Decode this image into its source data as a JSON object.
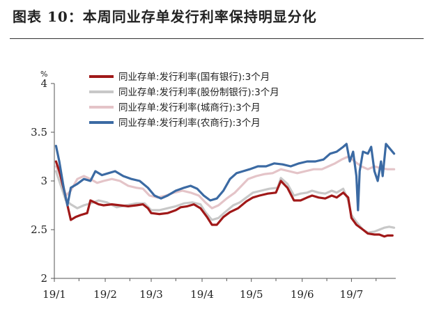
{
  "title": "图表 10：本周同业存单发行利率保持明显分化",
  "chart_data": {
    "type": "line",
    "y_unit": "%",
    "ylim": [
      2,
      4
    ],
    "yticks": [
      "2",
      "2.5",
      "3",
      "3.5",
      "4"
    ],
    "xticks": [
      "19/1",
      "19/2",
      "19/3",
      "19/4",
      "19/5",
      "19/6",
      "19/7"
    ],
    "x_range": [
      "2019-01-01",
      "2019-07-28"
    ],
    "legend_position": "top-right",
    "series": [
      {
        "name": "同业存单:发行利率(国有银行):3个月",
        "color": "#a01818",
        "points": [
          [
            "2019-01-02",
            3.2
          ],
          [
            "2019-01-04",
            3.1
          ],
          [
            "2019-01-07",
            2.9
          ],
          [
            "2019-01-09",
            2.75
          ],
          [
            "2019-01-11",
            2.6
          ],
          [
            "2019-01-14",
            2.63
          ],
          [
            "2019-01-17",
            2.65
          ],
          [
            "2019-01-21",
            2.67
          ],
          [
            "2019-01-23",
            2.8
          ],
          [
            "2019-01-28",
            2.76
          ],
          [
            "2019-01-31",
            2.75
          ],
          [
            "2019-02-05",
            2.76
          ],
          [
            "2019-02-10",
            2.75
          ],
          [
            "2019-02-15",
            2.74
          ],
          [
            "2019-02-20",
            2.75
          ],
          [
            "2019-02-24",
            2.76
          ],
          [
            "2019-02-27",
            2.72
          ],
          [
            "2019-03-01",
            2.67
          ],
          [
            "2019-03-06",
            2.66
          ],
          [
            "2019-03-11",
            2.67
          ],
          [
            "2019-03-16",
            2.7
          ],
          [
            "2019-03-19",
            2.73
          ],
          [
            "2019-03-23",
            2.74
          ],
          [
            "2019-03-27",
            2.76
          ],
          [
            "2019-03-31",
            2.72
          ],
          [
            "2019-04-04",
            2.63
          ],
          [
            "2019-04-07",
            2.55
          ],
          [
            "2019-04-10",
            2.55
          ],
          [
            "2019-04-14",
            2.63
          ],
          [
            "2019-04-18",
            2.68
          ],
          [
            "2019-04-23",
            2.72
          ],
          [
            "2019-04-28",
            2.79
          ],
          [
            "2019-05-02",
            2.83
          ],
          [
            "2019-05-06",
            2.85
          ],
          [
            "2019-05-11",
            2.87
          ],
          [
            "2019-05-16",
            2.88
          ],
          [
            "2019-05-19",
            3.0
          ],
          [
            "2019-05-23",
            2.93
          ],
          [
            "2019-05-27",
            2.8
          ],
          [
            "2019-05-31",
            2.8
          ],
          [
            "2019-06-04",
            2.83
          ],
          [
            "2019-06-07",
            2.85
          ],
          [
            "2019-06-11",
            2.83
          ],
          [
            "2019-06-15",
            2.82
          ],
          [
            "2019-06-19",
            2.85
          ],
          [
            "2019-06-22",
            2.83
          ],
          [
            "2019-06-26",
            2.88
          ],
          [
            "2019-06-29",
            2.83
          ],
          [
            "2019-07-01",
            2.62
          ],
          [
            "2019-07-04",
            2.55
          ],
          [
            "2019-07-08",
            2.5
          ],
          [
            "2019-07-11",
            2.46
          ],
          [
            "2019-07-15",
            2.45
          ],
          [
            "2019-07-18",
            2.45
          ],
          [
            "2019-07-21",
            2.43
          ],
          [
            "2019-07-23",
            2.44
          ],
          [
            "2019-07-26",
            2.44
          ]
        ]
      },
      {
        "name": "同业存单:发行利率(股份制银行):3个月",
        "color": "#c8c8c8",
        "points": [
          [
            "2019-01-02",
            3.1
          ],
          [
            "2019-01-05",
            2.95
          ],
          [
            "2019-01-08",
            2.8
          ],
          [
            "2019-01-11",
            2.76
          ],
          [
            "2019-01-15",
            2.72
          ],
          [
            "2019-01-19",
            2.75
          ],
          [
            "2019-01-23",
            2.77
          ],
          [
            "2019-01-28",
            2.8
          ],
          [
            "2019-02-02",
            2.78
          ],
          [
            "2019-02-08",
            2.73
          ],
          [
            "2019-02-14",
            2.75
          ],
          [
            "2019-02-20",
            2.77
          ],
          [
            "2019-02-25",
            2.77
          ],
          [
            "2019-03-01",
            2.7
          ],
          [
            "2019-03-06",
            2.7
          ],
          [
            "2019-03-11",
            2.72
          ],
          [
            "2019-03-16",
            2.74
          ],
          [
            "2019-03-21",
            2.77
          ],
          [
            "2019-03-26",
            2.78
          ],
          [
            "2019-03-31",
            2.76
          ],
          [
            "2019-04-03",
            2.68
          ],
          [
            "2019-04-07",
            2.6
          ],
          [
            "2019-04-11",
            2.62
          ],
          [
            "2019-04-15",
            2.68
          ],
          [
            "2019-04-20",
            2.75
          ],
          [
            "2019-04-24",
            2.78
          ],
          [
            "2019-04-28",
            2.83
          ],
          [
            "2019-05-02",
            2.88
          ],
          [
            "2019-05-07",
            2.9
          ],
          [
            "2019-05-12",
            2.92
          ],
          [
            "2019-05-17",
            2.93
          ],
          [
            "2019-05-19",
            3.03
          ],
          [
            "2019-05-23",
            2.97
          ],
          [
            "2019-05-27",
            2.85
          ],
          [
            "2019-05-31",
            2.87
          ],
          [
            "2019-06-04",
            2.88
          ],
          [
            "2019-06-07",
            2.9
          ],
          [
            "2019-06-11",
            2.88
          ],
          [
            "2019-06-15",
            2.87
          ],
          [
            "2019-06-19",
            2.9
          ],
          [
            "2019-06-22",
            2.88
          ],
          [
            "2019-06-26",
            2.92
          ],
          [
            "2019-06-29",
            2.8
          ],
          [
            "2019-07-01",
            2.65
          ],
          [
            "2019-07-04",
            2.58
          ],
          [
            "2019-07-08",
            2.5
          ],
          [
            "2019-07-11",
            2.47
          ],
          [
            "2019-07-15",
            2.48
          ],
          [
            "2019-07-18",
            2.5
          ],
          [
            "2019-07-21",
            2.52
          ],
          [
            "2019-07-24",
            2.53
          ],
          [
            "2019-07-27",
            2.52
          ]
        ]
      },
      {
        "name": "同业存单:发行利率(城商行):3个月",
        "color": "#e4c4c8",
        "points": [
          [
            "2019-01-02",
            3.15
          ],
          [
            "2019-01-05",
            3.05
          ],
          [
            "2019-01-08",
            2.85
          ],
          [
            "2019-01-11",
            2.9
          ],
          [
            "2019-01-15",
            3.02
          ],
          [
            "2019-01-19",
            3.05
          ],
          [
            "2019-01-23",
            3.02
          ],
          [
            "2019-01-27",
            2.98
          ],
          [
            "2019-01-31",
            3.0
          ],
          [
            "2019-02-05",
            3.02
          ],
          [
            "2019-02-10",
            3.0
          ],
          [
            "2019-02-15",
            2.95
          ],
          [
            "2019-02-20",
            2.93
          ],
          [
            "2019-02-24",
            2.92
          ],
          [
            "2019-02-28",
            2.85
          ],
          [
            "2019-03-05",
            2.83
          ],
          [
            "2019-03-10",
            2.85
          ],
          [
            "2019-03-15",
            2.88
          ],
          [
            "2019-03-20",
            2.9
          ],
          [
            "2019-03-25",
            2.88
          ],
          [
            "2019-03-30",
            2.85
          ],
          [
            "2019-04-03",
            2.78
          ],
          [
            "2019-04-07",
            2.72
          ],
          [
            "2019-04-11",
            2.75
          ],
          [
            "2019-04-16",
            2.82
          ],
          [
            "2019-04-21",
            2.88
          ],
          [
            "2019-04-25",
            2.95
          ],
          [
            "2019-04-29",
            3.02
          ],
          [
            "2019-05-04",
            3.05
          ],
          [
            "2019-05-09",
            3.07
          ],
          [
            "2019-05-14",
            3.08
          ],
          [
            "2019-05-19",
            3.12
          ],
          [
            "2019-05-24",
            3.1
          ],
          [
            "2019-05-29",
            3.08
          ],
          [
            "2019-06-03",
            3.1
          ],
          [
            "2019-06-08",
            3.12
          ],
          [
            "2019-06-13",
            3.12
          ],
          [
            "2019-06-17",
            3.15
          ],
          [
            "2019-06-21",
            3.18
          ],
          [
            "2019-06-25",
            3.22
          ],
          [
            "2019-06-29",
            3.25
          ],
          [
            "2019-07-03",
            3.2
          ],
          [
            "2019-07-07",
            3.15
          ],
          [
            "2019-07-11",
            3.12
          ],
          [
            "2019-07-15",
            3.15
          ],
          [
            "2019-07-19",
            3.13
          ],
          [
            "2019-07-23",
            3.12
          ],
          [
            "2019-07-27",
            3.12
          ]
        ]
      },
      {
        "name": "同业存单:发行利率(农商行):3个月",
        "color": "#3b6aa3",
        "points": [
          [
            "2019-01-02",
            3.36
          ],
          [
            "2019-01-04",
            3.2
          ],
          [
            "2019-01-07",
            2.9
          ],
          [
            "2019-01-09",
            2.75
          ],
          [
            "2019-01-11",
            2.93
          ],
          [
            "2019-01-15",
            2.97
          ],
          [
            "2019-01-19",
            3.02
          ],
          [
            "2019-01-23",
            3.0
          ],
          [
            "2019-01-26",
            3.1
          ],
          [
            "2019-01-30",
            3.06
          ],
          [
            "2019-02-03",
            3.08
          ],
          [
            "2019-02-07",
            3.1
          ],
          [
            "2019-02-12",
            3.05
          ],
          [
            "2019-02-17",
            3.02
          ],
          [
            "2019-02-22",
            3.0
          ],
          [
            "2019-02-27",
            2.93
          ],
          [
            "2019-03-03",
            2.85
          ],
          [
            "2019-03-07",
            2.82
          ],
          [
            "2019-03-11",
            2.85
          ],
          [
            "2019-03-16",
            2.9
          ],
          [
            "2019-03-21",
            2.93
          ],
          [
            "2019-03-25",
            2.95
          ],
          [
            "2019-03-29",
            2.92
          ],
          [
            "2019-04-02",
            2.85
          ],
          [
            "2019-04-06",
            2.8
          ],
          [
            "2019-04-10",
            2.82
          ],
          [
            "2019-04-14",
            2.9
          ],
          [
            "2019-04-18",
            3.02
          ],
          [
            "2019-04-22",
            3.08
          ],
          [
            "2019-04-26",
            3.1
          ],
          [
            "2019-04-30",
            3.12
          ],
          [
            "2019-05-05",
            3.15
          ],
          [
            "2019-05-10",
            3.15
          ],
          [
            "2019-05-15",
            3.18
          ],
          [
            "2019-05-20",
            3.17
          ],
          [
            "2019-05-25",
            3.15
          ],
          [
            "2019-05-30",
            3.18
          ],
          [
            "2019-06-04",
            3.2
          ],
          [
            "2019-06-09",
            3.2
          ],
          [
            "2019-06-14",
            3.22
          ],
          [
            "2019-06-18",
            3.28
          ],
          [
            "2019-06-22",
            3.3
          ],
          [
            "2019-06-26",
            3.35
          ],
          [
            "2019-06-28",
            3.38
          ],
          [
            "2019-06-30",
            3.2
          ],
          [
            "2019-07-02",
            3.3
          ],
          [
            "2019-07-04",
            3.05
          ],
          [
            "2019-07-05",
            2.7
          ],
          [
            "2019-07-06",
            3.1
          ],
          [
            "2019-07-08",
            3.3
          ],
          [
            "2019-07-11",
            3.28
          ],
          [
            "2019-07-13",
            3.35
          ],
          [
            "2019-07-15",
            3.1
          ],
          [
            "2019-07-17",
            3.0
          ],
          [
            "2019-07-19",
            3.2
          ],
          [
            "2019-07-20",
            3.05
          ],
          [
            "2019-07-22",
            3.38
          ],
          [
            "2019-07-25",
            3.32
          ],
          [
            "2019-07-27",
            3.28
          ]
        ]
      }
    ]
  }
}
